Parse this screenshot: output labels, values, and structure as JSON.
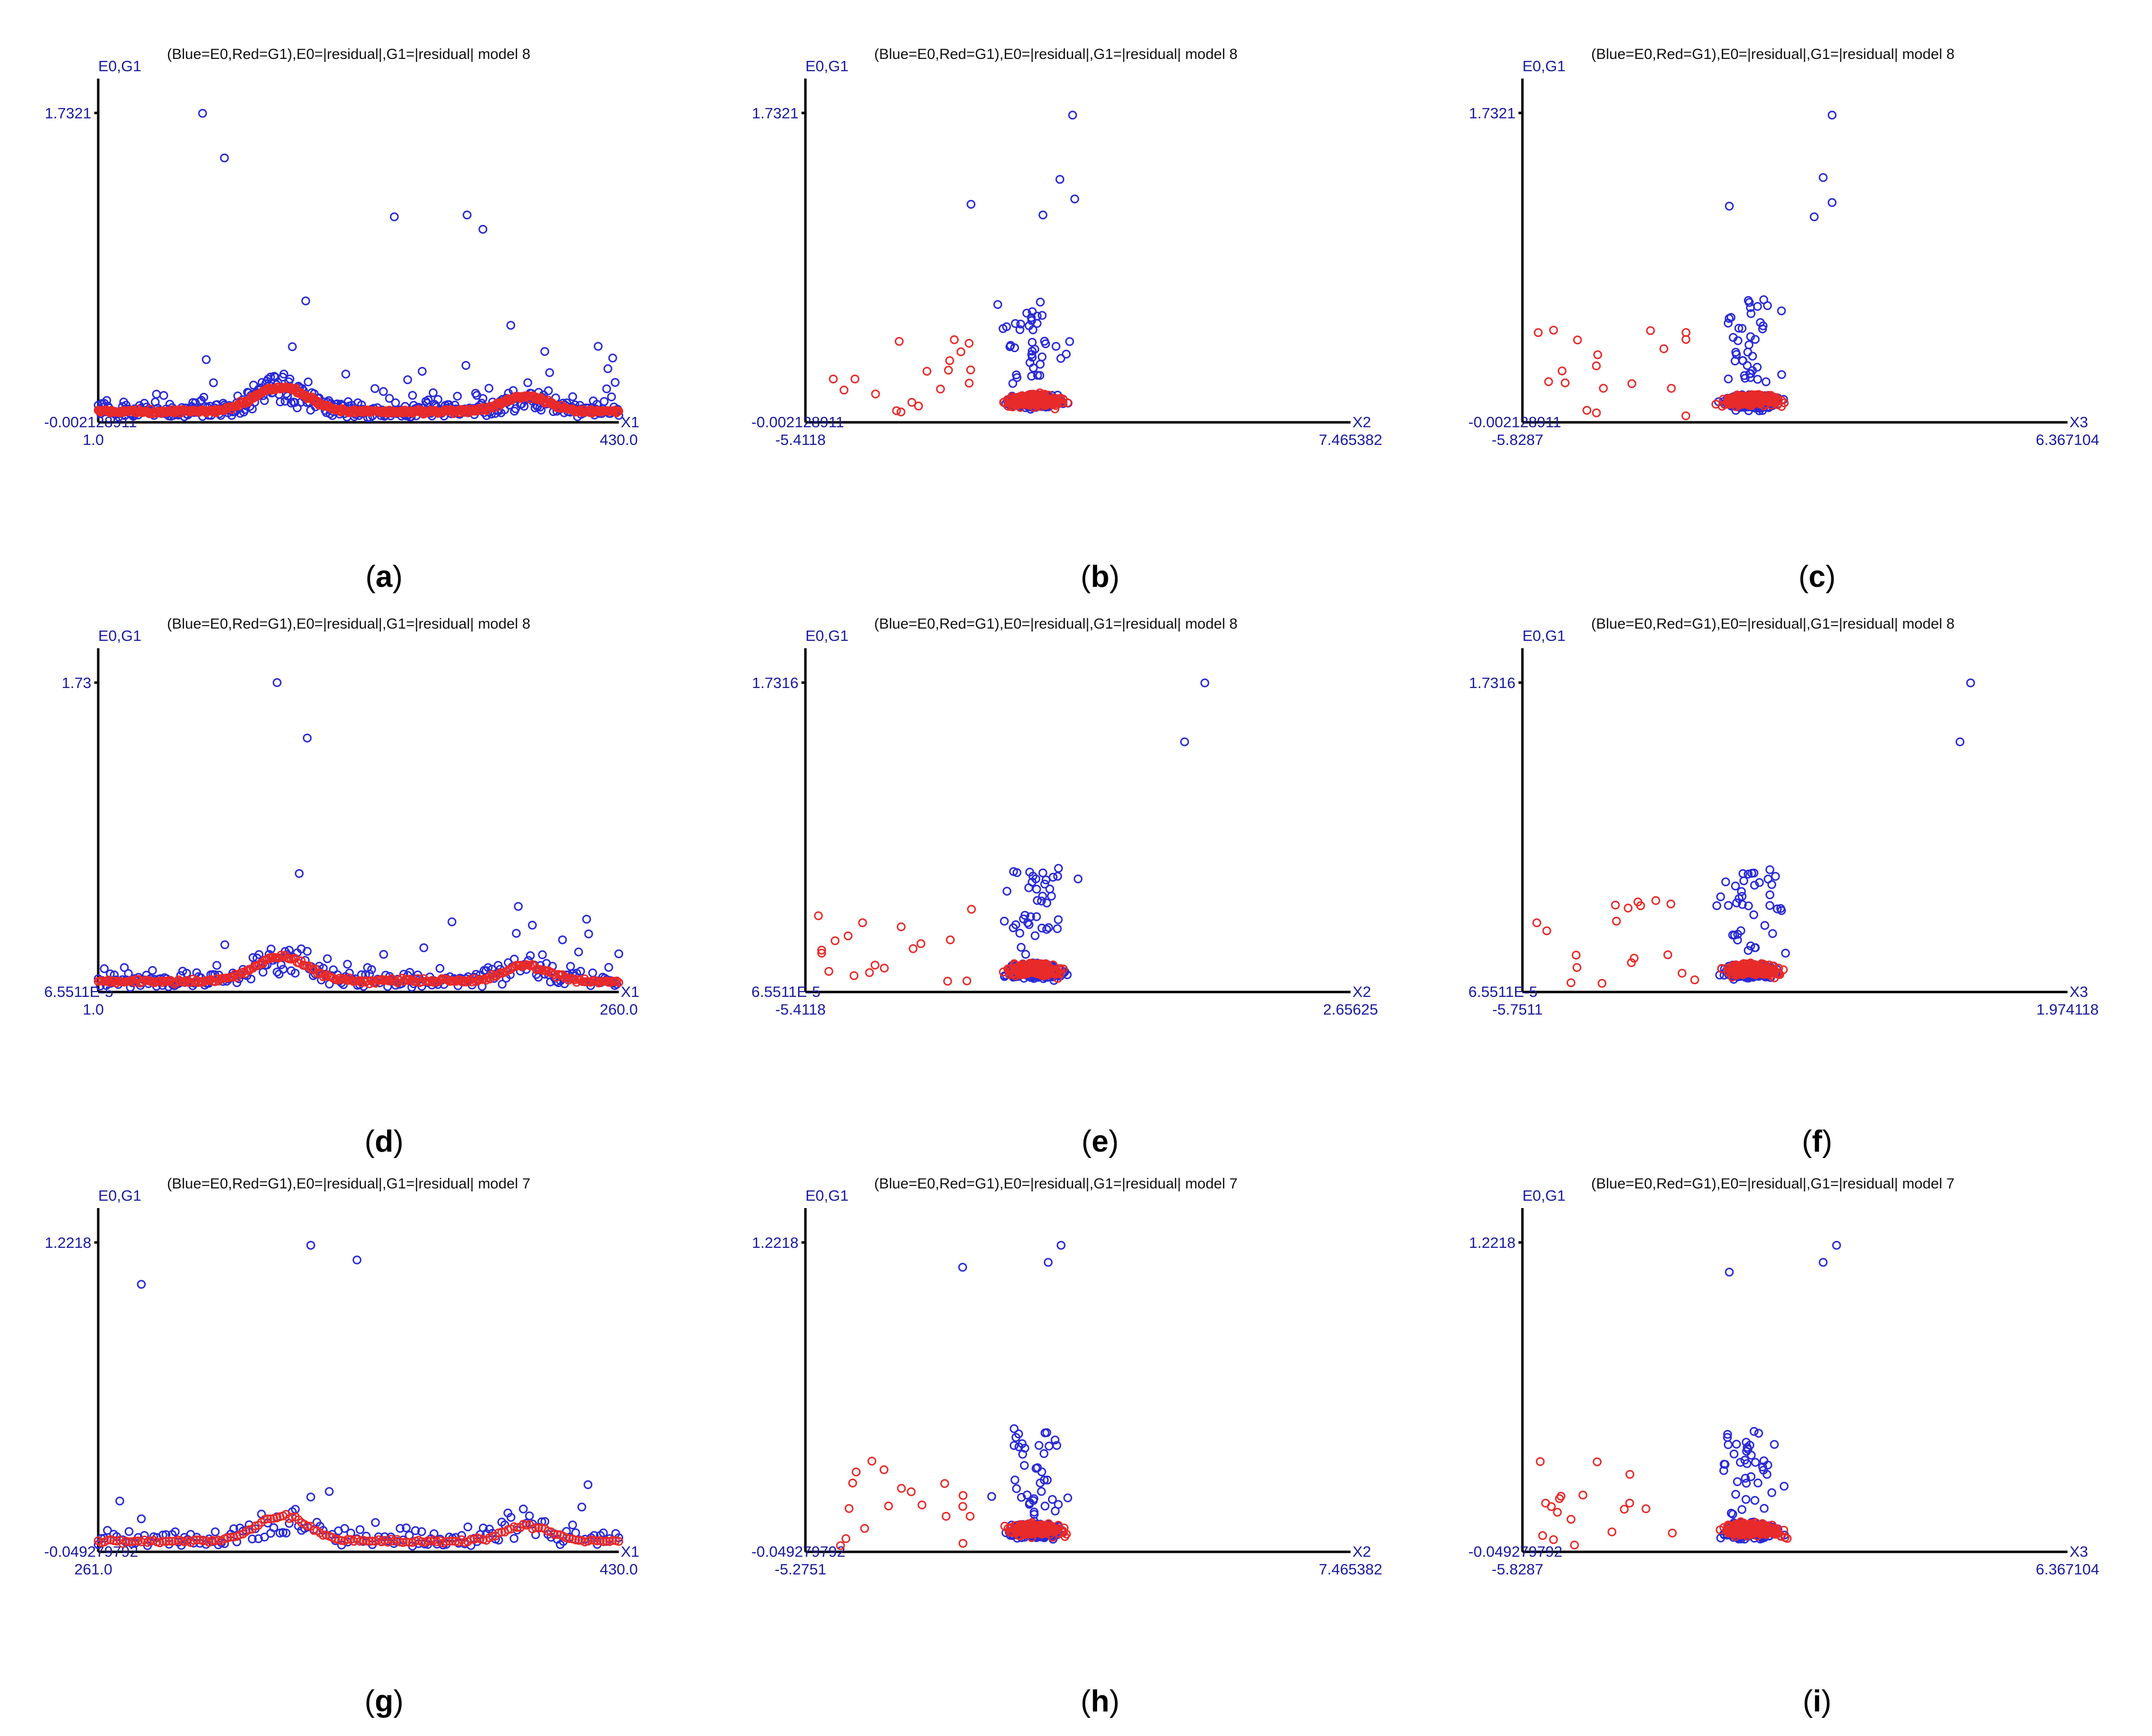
{
  "figure": {
    "panel_letters": [
      "a",
      "b",
      "c",
      "d",
      "e",
      "f",
      "g",
      "h",
      "i"
    ]
  },
  "colors": {
    "e0": "#2a2ad8",
    "g1": "#e82a2a",
    "axis": "#000000",
    "axis_text": "#1a1aa0",
    "title_text": "#111111",
    "caption_text": "#000000"
  },
  "chart_data": [
    {
      "panel": "a",
      "type": "scatter",
      "title": "(Blue=E0,Red=G1),E0=|residual|,G1=|residual| model 8",
      "ylabel": "E0,G1",
      "xlabel": "X1",
      "ymax_label": "1.7321",
      "ymin_label": "-0.002128911",
      "xmin_label": "1.0",
      "xmax_label": "430.0",
      "xlim": [
        1.0,
        430.0
      ],
      "ylim": [
        -0.002128911,
        1.7321
      ],
      "shape": "index",
      "seed": 11,
      "outliers": [
        [
          87,
          1.73
        ],
        [
          105,
          1.48
        ],
        [
          245,
          1.15
        ],
        [
          305,
          1.16
        ],
        [
          318,
          1.08
        ]
      ],
      "series": [
        {
          "name": "E0",
          "color_key": "e0"
        },
        {
          "name": "G1",
          "color_key": "g1"
        }
      ]
    },
    {
      "panel": "b",
      "type": "scatter",
      "title": "(Blue=E0,Red=G1),E0=|residual|,G1=|residual| model 8",
      "ylabel": "E0,G1",
      "xlabel": "X2",
      "ymax_label": "1.7321",
      "ymin_label": "-0.002128911",
      "xmin_label": "-5.4118",
      "xmax_label": "7.465382",
      "xlim": [
        -5.4118,
        7.465382
      ],
      "ylim": [
        -0.002128911,
        1.7321
      ],
      "shape": "blob",
      "seed": 22,
      "outliers": [
        [
          0.9,
          1.72
        ],
        [
          0.6,
          1.36
        ],
        [
          -1.5,
          1.22
        ],
        [
          0.2,
          1.16
        ],
        [
          0.95,
          1.25
        ]
      ],
      "series": [
        {
          "name": "E0",
          "color_key": "e0"
        },
        {
          "name": "G1",
          "color_key": "g1"
        }
      ]
    },
    {
      "panel": "c",
      "type": "scatter",
      "title": "(Blue=E0,Red=G1),E0=|residual|,G1=|residual| model 8",
      "ylabel": "E0,G1",
      "xlabel": "X3",
      "ymax_label": "1.7321",
      "ymin_label": "-0.002128911",
      "xmin_label": "-5.8287",
      "xmax_label": "6.367104",
      "xlim": [
        -5.8287,
        6.367104
      ],
      "ylim": [
        -0.002128911,
        1.7321
      ],
      "shape": "blob",
      "seed": 33,
      "outliers": [
        [
          1.1,
          1.72
        ],
        [
          0.9,
          1.37
        ],
        [
          -1.2,
          1.21
        ],
        [
          1.1,
          1.23
        ],
        [
          0.7,
          1.15
        ]
      ],
      "series": [
        {
          "name": "E0",
          "color_key": "e0"
        },
        {
          "name": "G1",
          "color_key": "g1"
        }
      ]
    },
    {
      "panel": "d",
      "type": "scatter",
      "title": "(Blue=E0,Red=G1),E0=|residual|,G1=|residual| model 8",
      "ylabel": "E0,G1",
      "xlabel": "X1",
      "ymax_label": "1.73",
      "ymin_label": "6.5511E-5",
      "xmin_label": "1.0",
      "xmax_label": "260.0",
      "xlim": [
        1.0,
        260.0
      ],
      "ylim": [
        6.55e-05,
        1.73
      ],
      "shape": "index",
      "seed": 44,
      "outliers": [
        [
          90,
          1.73
        ],
        [
          105,
          1.42
        ]
      ],
      "series": [
        {
          "name": "E0",
          "color_key": "e0"
        },
        {
          "name": "G1",
          "color_key": "g1"
        }
      ]
    },
    {
      "panel": "e",
      "type": "scatter",
      "title": "(Blue=E0,Red=G1),E0=|residual|,G1=|residual| model 8",
      "ylabel": "E0,G1",
      "xlabel": "X2",
      "ymax_label": "1.7316",
      "ymin_label": "6.5511E-5",
      "xmin_label": "-5.4118",
      "xmax_label": "2.65625",
      "xlim": [
        -5.4118,
        2.65625
      ],
      "ylim": [
        6.55e-05,
        1.7316
      ],
      "shape": "blob",
      "seed": 55,
      "outliers": [
        [
          0.5,
          1.73
        ],
        [
          0.2,
          1.4
        ]
      ],
      "series": [
        {
          "name": "E0",
          "color_key": "e0"
        },
        {
          "name": "G1",
          "color_key": "g1"
        }
      ]
    },
    {
      "panel": "f",
      "type": "scatter",
      "title": "(Blue=E0,Red=G1),E0=|residual|,G1=|residual| model 8",
      "ylabel": "E0,G1",
      "xlabel": "X3",
      "ymax_label": "1.7316",
      "ymin_label": "6.5511E-5",
      "xmin_label": "-5.7511",
      "xmax_label": "1.974118",
      "xlim": [
        -5.7511,
        1.974118
      ],
      "ylim": [
        6.55e-05,
        1.7316
      ],
      "shape": "blob",
      "seed": 66,
      "outliers": [
        [
          0.6,
          1.73
        ],
        [
          0.45,
          1.4
        ]
      ],
      "series": [
        {
          "name": "E0",
          "color_key": "e0"
        },
        {
          "name": "G1",
          "color_key": "g1"
        }
      ]
    },
    {
      "panel": "g",
      "type": "scatter",
      "title": "(Blue=E0,Red=G1),E0=|residual|,G1=|residual| model 7",
      "ylabel": "E0,G1",
      "xlabel": "X1",
      "ymax_label": "1.2218",
      "ymin_label": "-0.049279792",
      "xmin_label": "261.0",
      "xmax_label": "430.0",
      "xlim": [
        261.0,
        430.0
      ],
      "ylim": [
        -0.049279792,
        1.2218
      ],
      "shape": "index",
      "seed": 77,
      "outliers": [
        [
          330,
          1.21
        ],
        [
          345,
          1.15
        ],
        [
          275,
          1.05
        ]
      ],
      "series": [
        {
          "name": "E0",
          "color_key": "e0"
        },
        {
          "name": "G1",
          "color_key": "g1"
        }
      ]
    },
    {
      "panel": "h",
      "type": "scatter",
      "title": "(Blue=E0,Red=G1),E0=|residual|,G1=|residual| model 7",
      "ylabel": "E0,G1",
      "xlabel": "X2",
      "ymax_label": "1.2218",
      "ymin_label": "-0.049279792",
      "xmin_label": "-5.2751",
      "xmax_label": "7.465382",
      "xlim": [
        -5.2751,
        7.465382
      ],
      "ylim": [
        -0.049279792,
        1.2218
      ],
      "shape": "blob",
      "seed": 88,
      "outliers": [
        [
          0.7,
          1.21
        ],
        [
          0.4,
          1.14
        ],
        [
          -1.6,
          1.12
        ]
      ],
      "series": [
        {
          "name": "E0",
          "color_key": "e0"
        },
        {
          "name": "G1",
          "color_key": "g1"
        }
      ]
    },
    {
      "panel": "i",
      "type": "scatter",
      "title": "(Blue=E0,Red=G1),E0=|residual|,G1=|residual| model 7",
      "ylabel": "E0,G1",
      "xlabel": "X3",
      "ymax_label": "1.2218",
      "ymin_label": "-0.049279792",
      "xmin_label": "-5.8287",
      "xmax_label": "6.367104",
      "xlim": [
        -5.8287,
        6.367104
      ],
      "ylim": [
        -0.049279792,
        1.2218
      ],
      "shape": "blob",
      "seed": 99,
      "outliers": [
        [
          1.2,
          1.21
        ],
        [
          0.9,
          1.14
        ],
        [
          -1.2,
          1.1
        ]
      ],
      "series": [
        {
          "name": "E0",
          "color_key": "e0"
        },
        {
          "name": "G1",
          "color_key": "g1"
        }
      ]
    }
  ]
}
